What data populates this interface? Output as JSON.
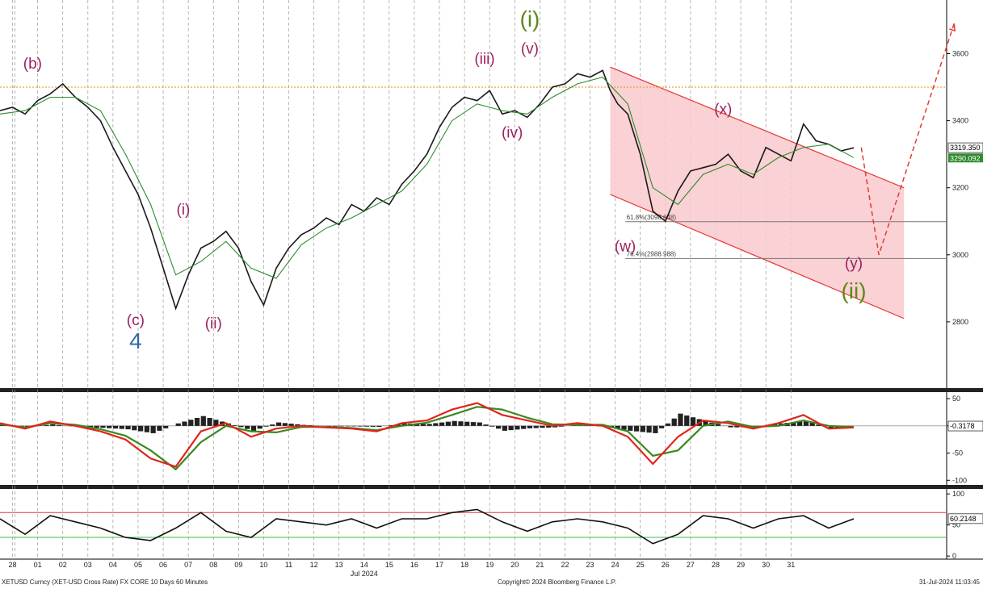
{
  "chart_data": {
    "type": "line",
    "title": "XETUSD Curncy (XET-USD Cross Rate) FX CORE 10 Days 60 Minutes",
    "copyright": "Copyright© 2024 Bloomberg Finance L.P.",
    "timestamp": "31-Jul-2024 11:03:45",
    "x_month_label": "Jul 2024",
    "x_ticks": [
      "28",
      "01",
      "02",
      "03",
      "04",
      "05",
      "06",
      "07",
      "08",
      "09",
      "10",
      "11",
      "12",
      "13",
      "14",
      "15",
      "16",
      "17",
      "18",
      "19",
      "20",
      "21",
      "22",
      "23",
      "24",
      "25",
      "26",
      "27",
      "28",
      "29",
      "30",
      "31"
    ],
    "price_panel": {
      "ylim": [
        2600,
        3760
      ],
      "y_ticks": [
        2800,
        3000,
        3200,
        3400,
        3600
      ],
      "last_price_label": "3319.350",
      "ma_label": "3290.092",
      "resistance_level": 3500,
      "series": [
        {
          "x": [
            27.0,
            27.5,
            28.0,
            28.5,
            29.0,
            29.5,
            30.0,
            30.5,
            31.0,
            31.5,
            32.0,
            32.5,
            33.0,
            33.5,
            34.0,
            34.5,
            35.0,
            35.5,
            36.0,
            36.5,
            37.0,
            37.5,
            38.0,
            38.5,
            39.0,
            39.5,
            40.0,
            40.5,
            41.0,
            41.5,
            42.0,
            42.5,
            43.0,
            43.5,
            44.0,
            44.5,
            45.0,
            45.5,
            46.0,
            46.5,
            47.0,
            47.5,
            48.0,
            48.5,
            49.0,
            49.5,
            50.0,
            50.5,
            51.0,
            51.3,
            51.6,
            52.0,
            52.5,
            53.0,
            53.5,
            54.0,
            54.5,
            55.0,
            55.5,
            56.0,
            56.5,
            57.0,
            57.5,
            58.0,
            58.5,
            59.0,
            59.5,
            60.0,
            60.5,
            61.0
          ],
          "y": [
            3430,
            3440,
            3420,
            3460,
            3480,
            3510,
            3470,
            3440,
            3400,
            3320,
            3250,
            3180,
            3080,
            2960,
            2840,
            2940,
            3020,
            3040,
            3070,
            3020,
            2920,
            2850,
            2960,
            3020,
            3060,
            3080,
            3110,
            3090,
            3150,
            3130,
            3170,
            3150,
            3210,
            3250,
            3300,
            3380,
            3440,
            3470,
            3460,
            3490,
            3420,
            3430,
            3410,
            3450,
            3500,
            3510,
            3540,
            3530,
            3550,
            3490,
            3450,
            3420,
            3300,
            3130,
            3100,
            3190,
            3250,
            3260,
            3270,
            3300,
            3250,
            3230,
            3320,
            3300,
            3280,
            3390,
            3340,
            3330,
            3310,
            3319
          ]
        },
        {
          "x": [
            27.0,
            28.0,
            29.0,
            30.0,
            31.0,
            32.0,
            33.0,
            34.0,
            35.0,
            36.0,
            37.0,
            38.0,
            39.0,
            40.0,
            41.0,
            42.0,
            43.0,
            44.0,
            45.0,
            46.0,
            47.0,
            48.0,
            49.0,
            50.0,
            51.0,
            52.0,
            53.0,
            54.0,
            55.0,
            56.0,
            57.0,
            58.0,
            59.0,
            60.0,
            61.0
          ],
          "y": [
            3420,
            3430,
            3470,
            3470,
            3430,
            3300,
            3150,
            2940,
            2980,
            3040,
            2960,
            2930,
            3030,
            3080,
            3110,
            3150,
            3190,
            3270,
            3400,
            3450,
            3430,
            3420,
            3470,
            3510,
            3530,
            3450,
            3200,
            3150,
            3240,
            3270,
            3240,
            3290,
            3320,
            3330,
            3290
          ]
        }
      ],
      "channel": {
        "upper": [
          [
            51.3,
            3560
          ],
          [
            63.0,
            3200
          ]
        ],
        "lower": [
          [
            51.3,
            3180
          ],
          [
            63.0,
            2810
          ]
        ]
      },
      "projection": [
        [
          61.3,
          3320
        ],
        [
          62.0,
          3000
        ],
        [
          65.0,
          3690
        ]
      ],
      "fib_levels": [
        {
          "label": "61.8%(3098.648)",
          "value": 3098.648
        },
        {
          "label": "76.4%(2988.988)",
          "value": 2988.988
        }
      ],
      "wave_labels": [
        {
          "text": "(b)",
          "color": "#9c1f5f",
          "x": 28.3,
          "y": 3555
        },
        {
          "text": "(c)",
          "color": "#9c1f5f",
          "x": 32.4,
          "y": 2790
        },
        {
          "text": "4",
          "color": "#2d6aa6",
          "x": 32.4,
          "y": 2720
        },
        {
          "text": "(i)",
          "color": "#9c1f5f",
          "x": 34.3,
          "y": 3120
        },
        {
          "text": "(ii)",
          "color": "#9c1f5f",
          "x": 35.5,
          "y": 2780
        },
        {
          "text": "(iii)",
          "color": "#9c1f5f",
          "x": 46.3,
          "y": 3570
        },
        {
          "text": "(iv)",
          "color": "#9c1f5f",
          "x": 47.4,
          "y": 3350
        },
        {
          "text": "(i)",
          "color": "#5d8a1a",
          "x": 48.1,
          "y": 3680
        },
        {
          "text": "(v)",
          "color": "#9c1f5f",
          "x": 48.1,
          "y": 3600
        },
        {
          "text": "(x)",
          "color": "#9c1f5f",
          "x": 55.8,
          "y": 3420
        },
        {
          "text": "(w)",
          "color": "#9c1f5f",
          "x": 51.9,
          "y": 3010
        },
        {
          "text": "(y)",
          "color": "#9c1f5f",
          "x": 61.0,
          "y": 2960
        },
        {
          "text": "(ii)",
          "color": "#5d8a1a",
          "x": 61.0,
          "y": 2870
        }
      ]
    },
    "macd_panel": {
      "ylim": [
        -110,
        62
      ],
      "y_ticks": [
        50,
        0,
        -50,
        -100
      ],
      "last_value_label": "-0.3178",
      "series": [
        {
          "name": "",
          "x": [
            27,
            28,
            29,
            30,
            31,
            32,
            33,
            34,
            35,
            36,
            37,
            38,
            39,
            40,
            41,
            42,
            43,
            44,
            45,
            46,
            47,
            48,
            49,
            50,
            51,
            52,
            53,
            54,
            55,
            56,
            57,
            58,
            59,
            60,
            61
          ],
          "y": [
            5,
            -5,
            8,
            0,
            -10,
            -25,
            -60,
            -75,
            -10,
            5,
            -20,
            -5,
            0,
            -3,
            -5,
            -10,
            5,
            10,
            30,
            42,
            20,
            10,
            0,
            5,
            0,
            -20,
            -70,
            -20,
            10,
            5,
            -5,
            5,
            20,
            -5,
            -3
          ]
        },
        {
          "name": "",
          "x": [
            27,
            28,
            29,
            30,
            31,
            32,
            33,
            34,
            35,
            36,
            37,
            38,
            39,
            40,
            41,
            42,
            43,
            44,
            45,
            46,
            47,
            48,
            49,
            50,
            51,
            52,
            53,
            54,
            55,
            56,
            57,
            58,
            59,
            60,
            61
          ],
          "y": [
            3,
            -3,
            5,
            2,
            -6,
            -18,
            -45,
            -80,
            -30,
            0,
            -10,
            -12,
            -2,
            -2,
            -4,
            -8,
            0,
            6,
            20,
            35,
            30,
            15,
            3,
            2,
            2,
            -10,
            -55,
            -45,
            0,
            8,
            -2,
            0,
            10,
            0,
            -2
          ]
        }
      ]
    },
    "rsi_panel": {
      "ylim": [
        -5,
        108
      ],
      "y_ticks": [
        100,
        50,
        0
      ],
      "overbought": 70,
      "oversold": 30,
      "last_value_label": "60.2148",
      "series": [
        {
          "name": "",
          "x": [
            27,
            28,
            29,
            30,
            31,
            32,
            33,
            34,
            35,
            36,
            37,
            38,
            39,
            40,
            41,
            42,
            43,
            44,
            45,
            46,
            47,
            48,
            49,
            50,
            51,
            52,
            53,
            54,
            55,
            56,
            57,
            58,
            59,
            60,
            61
          ],
          "y": [
            60,
            35,
            65,
            55,
            45,
            30,
            25,
            45,
            70,
            40,
            30,
            60,
            55,
            50,
            60,
            45,
            60,
            60,
            70,
            75,
            55,
            40,
            55,
            60,
            55,
            45,
            20,
            35,
            65,
            60,
            45,
            60,
            65,
            45,
            60
          ]
        }
      ]
    }
  }
}
